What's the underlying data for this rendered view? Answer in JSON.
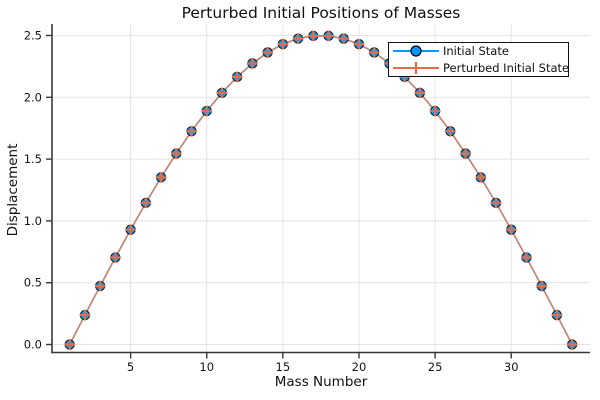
{
  "chart_data": {
    "type": "line",
    "title": "Perturbed Initial Positions of Masses",
    "xlabel": "Mass Number",
    "ylabel": "Displacement",
    "x": [
      1,
      2,
      3,
      4,
      5,
      6,
      7,
      8,
      9,
      10,
      11,
      12,
      13,
      14,
      15,
      16,
      17,
      18,
      19,
      20,
      21,
      22,
      23,
      24,
      25,
      26,
      27,
      28,
      29,
      30,
      31,
      32,
      33,
      34
    ],
    "series": [
      {
        "name": "Initial State",
        "marker": "circle",
        "color": "#009AFA",
        "marker_edge_color": "#101c26",
        "values": [
          0.0,
          0.238,
          0.473,
          0.704,
          0.929,
          1.146,
          1.352,
          1.545,
          1.725,
          1.889,
          2.036,
          2.165,
          2.274,
          2.363,
          2.43,
          2.475,
          2.497,
          2.497,
          2.475,
          2.43,
          2.363,
          2.274,
          2.165,
          2.036,
          1.889,
          1.725,
          1.545,
          1.352,
          1.146,
          0.929,
          0.704,
          0.473,
          0.238,
          0.0
        ]
      },
      {
        "name": "Perturbed Initial State",
        "marker": "cross",
        "color": "#E26E47",
        "line_color": "#CF8470",
        "values": [
          0.0,
          0.238,
          0.473,
          0.704,
          0.929,
          1.146,
          1.352,
          1.545,
          1.725,
          1.889,
          2.036,
          2.165,
          2.274,
          2.363,
          2.43,
          2.475,
          2.497,
          2.497,
          2.475,
          2.43,
          2.363,
          2.274,
          2.165,
          2.036,
          1.889,
          1.725,
          1.545,
          1.352,
          1.146,
          0.929,
          0.704,
          0.473,
          0.238,
          0.0
        ]
      }
    ],
    "xticks": [
      5,
      10,
      15,
      20,
      25,
      30
    ],
    "xtick_labels": [
      "5",
      "10",
      "15",
      "20",
      "25",
      "30"
    ],
    "yticks": [
      0.0,
      0.5,
      1.0,
      1.5,
      2.0,
      2.5
    ],
    "ytick_labels": [
      "0.0",
      "0.5",
      "1.0",
      "1.5",
      "2.0",
      "2.5"
    ],
    "xlim": [
      -0.2,
      35.2
    ],
    "ylim": [
      -0.07,
      2.6
    ],
    "grid": true,
    "legend_position": "top-right"
  },
  "colors": {
    "blue": "#009AFA",
    "blue_marker_edge": "#101c26",
    "salmon": "#E26E47",
    "connect_line": "#CF8470",
    "grid": "#E4E4E4",
    "spine": "#36383C",
    "text": "#151515"
  }
}
